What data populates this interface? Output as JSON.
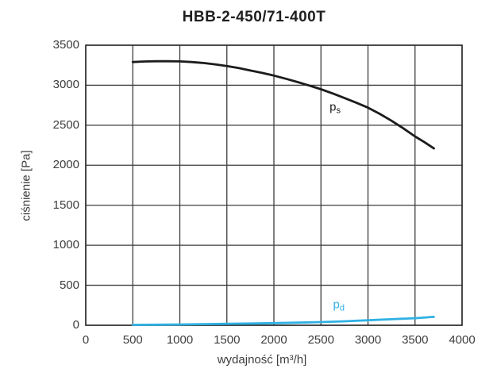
{
  "page": {
    "background": "#ffffff"
  },
  "chart_data": {
    "type": "line",
    "title": "HBB-2-450/71-400T",
    "xlabel": "wydajność [m³/h]",
    "ylabel": "ciśnienie [Pa]",
    "xlim": [
      0,
      4000
    ],
    "ylim": [
      0,
      3500
    ],
    "x_ticks": [
      0,
      500,
      1000,
      1500,
      2000,
      2500,
      3000,
      3500,
      4000
    ],
    "y_ticks": [
      0,
      500,
      1000,
      1500,
      2000,
      2500,
      3000,
      3500
    ],
    "grid": "on",
    "legend_position": "inline-curve-labels",
    "colors": {
      "grid": "#3c3c3c",
      "axis": "#2a2a2a",
      "tick_text": "#3d3d3d",
      "title_text": "#1f1f1f",
      "ps_curve": "#1c1c1c",
      "pd_curve": "#2fb1e3"
    },
    "series": [
      {
        "name": "ps",
        "label_main": "p",
        "label_sub": "s",
        "color_key": "ps_curve",
        "x": [
          500,
          625,
          750,
          875,
          1000,
          1125,
          1250,
          1375,
          1500,
          1625,
          1750,
          1875,
          2000,
          2125,
          2250,
          2375,
          2500,
          2625,
          2750,
          2875,
          3000,
          3125,
          3250,
          3375,
          3500,
          3600,
          3700
        ],
        "y": [
          3290,
          3297,
          3300,
          3300,
          3298,
          3290,
          3278,
          3261,
          3240,
          3214,
          3184,
          3154,
          3120,
          3082,
          3040,
          2996,
          2950,
          2897,
          2840,
          2782,
          2720,
          2642,
          2556,
          2462,
          2360,
          2288,
          2210
        ],
        "label_pos": {
          "x": 2650,
          "y": 2720
        }
      },
      {
        "name": "pd",
        "label_main": "p",
        "label_sub": "d",
        "color_key": "pd_curve",
        "x": [
          500,
          750,
          1000,
          1250,
          1500,
          1750,
          2000,
          2250,
          2500,
          2750,
          3000,
          3250,
          3500,
          3700
        ],
        "y": [
          5,
          7,
          10,
          14,
          18,
          22,
          27,
          33,
          40,
          50,
          62,
          75,
          88,
          105
        ],
        "label_pos": {
          "x": 2690,
          "y": 245
        }
      }
    ]
  }
}
